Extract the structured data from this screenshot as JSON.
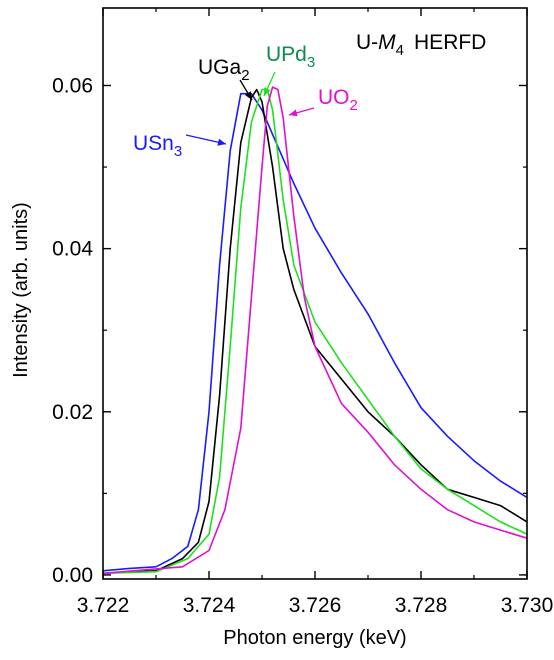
{
  "chart_data": {
    "type": "line",
    "title": "U-M4 HERFD",
    "title_parts": {
      "prefix": "U-",
      "italic": "M",
      "subscript": "4",
      "suffix": "HERFD"
    },
    "xlabel": "Photon energy (keV)",
    "ylabel": "Intensity (arb. units)",
    "xlim": [
      3.722,
      3.73
    ],
    "ylim": [
      -0.0005,
      0.0695
    ],
    "xticks": [
      "3.722",
      "3.724",
      "3.726",
      "3.728",
      "3.730"
    ],
    "yticks": [
      "0.00",
      "0.02",
      "0.04",
      "0.06"
    ],
    "grid": false,
    "series": [
      {
        "name": "USn3",
        "label_base": "USn",
        "label_sub": "3",
        "color": "#1a1aff",
        "x": [
          3.722,
          3.7225,
          3.723,
          3.7233,
          3.7236,
          3.7238,
          3.724,
          3.7242,
          3.7244,
          3.7246,
          3.7248,
          3.725,
          3.7253,
          3.7256,
          3.726,
          3.7265,
          3.727,
          3.7275,
          3.728,
          3.7285,
          3.729,
          3.7295,
          3.73
        ],
        "values": [
          0.0005,
          0.0008,
          0.001,
          0.002,
          0.0035,
          0.008,
          0.02,
          0.038,
          0.052,
          0.059,
          0.059,
          0.057,
          0.0525,
          0.048,
          0.0425,
          0.037,
          0.032,
          0.026,
          0.0205,
          0.017,
          0.014,
          0.0115,
          0.0095
        ]
      },
      {
        "name": "UGa2",
        "label_base": "UGa",
        "label_sub": "2",
        "color": "#000000",
        "x": [
          3.722,
          3.723,
          3.7235,
          3.7238,
          3.724,
          3.7242,
          3.7244,
          3.7246,
          3.7248,
          3.7249,
          3.725,
          3.7252,
          3.7254,
          3.7256,
          3.726,
          3.7265,
          3.727,
          3.7275,
          3.728,
          3.7285,
          3.729,
          3.7295,
          3.73
        ],
        "values": [
          0.0002,
          0.0005,
          0.002,
          0.004,
          0.009,
          0.022,
          0.04,
          0.053,
          0.0585,
          0.0595,
          0.058,
          0.05,
          0.04,
          0.035,
          0.028,
          0.024,
          0.02,
          0.017,
          0.0135,
          0.0105,
          0.0095,
          0.0085,
          0.0065
        ]
      },
      {
        "name": "UPd3",
        "label_base": "UPd",
        "label_sub": "3",
        "color": "#1fe01f",
        "x": [
          3.722,
          3.723,
          3.7236,
          3.724,
          3.7242,
          3.7244,
          3.7246,
          3.7248,
          3.725,
          3.7251,
          3.7252,
          3.7254,
          3.7256,
          3.726,
          3.7265,
          3.727,
          3.7275,
          3.728,
          3.7285,
          3.729,
          3.7295,
          3.73
        ],
        "values": [
          0.0002,
          0.0004,
          0.002,
          0.005,
          0.012,
          0.028,
          0.045,
          0.0555,
          0.0595,
          0.0595,
          0.057,
          0.046,
          0.038,
          0.031,
          0.026,
          0.0215,
          0.017,
          0.013,
          0.0105,
          0.0085,
          0.0065,
          0.005
        ]
      },
      {
        "name": "UO2",
        "label_base": "UO",
        "label_sub": "2",
        "color": "#e010d0",
        "x": [
          3.722,
          3.7235,
          3.724,
          3.7243,
          3.7246,
          3.7248,
          3.725,
          3.7251,
          3.7252,
          3.7253,
          3.7254,
          3.7256,
          3.7258,
          3.726,
          3.7265,
          3.727,
          3.7275,
          3.728,
          3.7285,
          3.729,
          3.7295,
          3.73
        ],
        "values": [
          0.0002,
          0.001,
          0.003,
          0.008,
          0.018,
          0.034,
          0.05,
          0.0575,
          0.0598,
          0.0595,
          0.056,
          0.044,
          0.034,
          0.028,
          0.021,
          0.0175,
          0.0135,
          0.0105,
          0.008,
          0.0065,
          0.0055,
          0.0045
        ]
      }
    ]
  }
}
